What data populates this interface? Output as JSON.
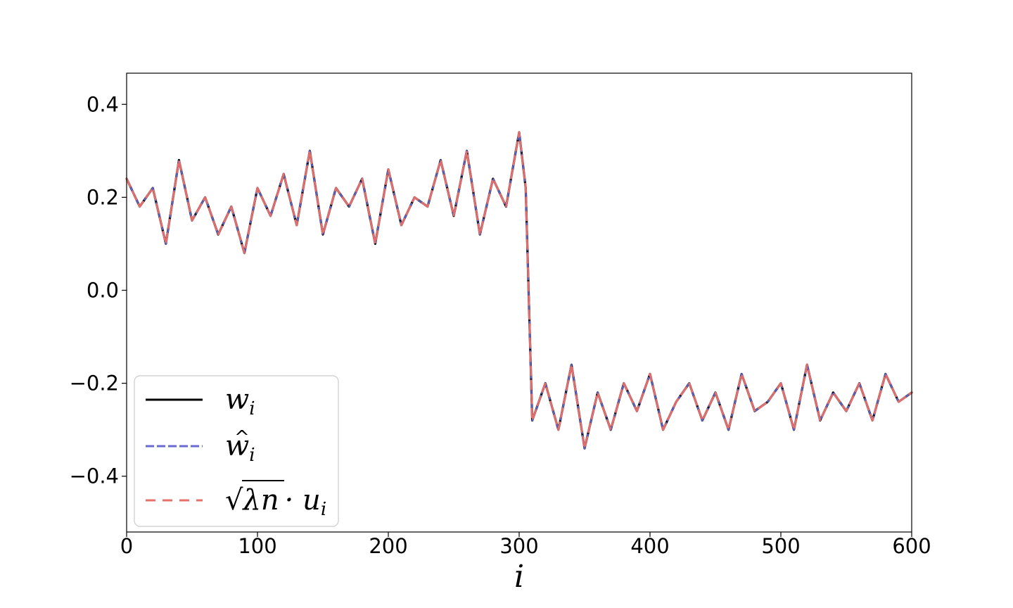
{
  "chart_data": {
    "type": "line",
    "xlabel": "i",
    "ylabel": "",
    "xlim": [
      0,
      600
    ],
    "ylim": [
      -0.52,
      0.467
    ],
    "x_ticks": [
      0,
      100,
      200,
      300,
      400,
      500,
      600
    ],
    "x_tick_labels": [
      "0",
      "100",
      "200",
      "300",
      "400",
      "500",
      "600"
    ],
    "y_ticks": [
      0.4,
      0.2,
      0.0,
      -0.2,
      -0.4
    ],
    "y_tick_labels": [
      "0.4",
      "0.2",
      "0.0",
      "−0.2",
      "−0.4"
    ],
    "grid": false,
    "legend_position": "lower-left",
    "x": [
      0,
      10,
      20,
      30,
      40,
      50,
      60,
      70,
      80,
      90,
      100,
      110,
      120,
      130,
      140,
      150,
      160,
      170,
      180,
      190,
      200,
      210,
      220,
      230,
      240,
      250,
      260,
      270,
      280,
      290,
      300,
      305,
      310,
      320,
      330,
      340,
      350,
      360,
      370,
      380,
      390,
      400,
      410,
      420,
      430,
      440,
      450,
      460,
      470,
      480,
      490,
      500,
      510,
      520,
      530,
      540,
      550,
      560,
      570,
      580,
      590,
      600
    ],
    "series": [
      {
        "name": "w_i",
        "color": "#000000",
        "style": "solid",
        "values": [
          0.24,
          0.18,
          0.22,
          0.1,
          0.28,
          0.15,
          0.2,
          0.12,
          0.18,
          0.08,
          0.22,
          0.16,
          0.25,
          0.14,
          0.3,
          0.12,
          0.22,
          0.18,
          0.24,
          0.1,
          0.26,
          0.14,
          0.2,
          0.18,
          0.28,
          0.16,
          0.3,
          0.12,
          0.24,
          0.18,
          0.34,
          0.22,
          -0.28,
          -0.2,
          -0.3,
          -0.16,
          -0.34,
          -0.22,
          -0.3,
          -0.2,
          -0.26,
          -0.18,
          -0.3,
          -0.24,
          -0.2,
          -0.28,
          -0.22,
          -0.3,
          -0.18,
          -0.26,
          -0.24,
          -0.2,
          -0.3,
          -0.16,
          -0.28,
          -0.22,
          -0.26,
          -0.2,
          -0.28,
          -0.18,
          -0.24,
          -0.22
        ]
      },
      {
        "name": "ŵ_i",
        "color": "#6a6ad2",
        "style": "dashed",
        "values": [
          0.24,
          0.18,
          0.22,
          0.1,
          0.28,
          0.15,
          0.2,
          0.12,
          0.18,
          0.08,
          0.22,
          0.16,
          0.25,
          0.14,
          0.3,
          0.12,
          0.22,
          0.18,
          0.24,
          0.1,
          0.26,
          0.14,
          0.2,
          0.18,
          0.28,
          0.16,
          0.3,
          0.12,
          0.24,
          0.18,
          0.34,
          0.22,
          -0.28,
          -0.2,
          -0.3,
          -0.16,
          -0.34,
          -0.22,
          -0.3,
          -0.2,
          -0.26,
          -0.18,
          -0.3,
          -0.24,
          -0.2,
          -0.28,
          -0.22,
          -0.3,
          -0.18,
          -0.26,
          -0.24,
          -0.2,
          -0.3,
          -0.16,
          -0.28,
          -0.22,
          -0.26,
          -0.2,
          -0.28,
          -0.18,
          -0.24,
          -0.22
        ]
      },
      {
        "name": "√λn · u_i",
        "color": "#e8706c",
        "style": "dashed",
        "values": [
          0.24,
          0.18,
          0.22,
          0.1,
          0.28,
          0.15,
          0.2,
          0.12,
          0.18,
          0.08,
          0.22,
          0.16,
          0.25,
          0.14,
          0.3,
          0.12,
          0.22,
          0.18,
          0.24,
          0.1,
          0.26,
          0.14,
          0.2,
          0.18,
          0.28,
          0.16,
          0.3,
          0.12,
          0.24,
          0.18,
          0.34,
          0.22,
          -0.28,
          -0.2,
          -0.3,
          -0.16,
          -0.34,
          -0.22,
          -0.3,
          -0.2,
          -0.26,
          -0.18,
          -0.3,
          -0.24,
          -0.2,
          -0.28,
          -0.22,
          -0.3,
          -0.18,
          -0.26,
          -0.24,
          -0.2,
          -0.3,
          -0.16,
          -0.28,
          -0.22,
          -0.26,
          -0.2,
          -0.28,
          -0.18,
          -0.24,
          -0.22
        ]
      }
    ],
    "legend": [
      {
        "symbol": "w",
        "subscript": "i",
        "hat": false
      },
      {
        "symbol": "w",
        "subscript": "i",
        "hat": true
      },
      {
        "symbol": "√",
        "radicand": "λn",
        "suffix": "· u",
        "subscript": "i"
      }
    ]
  }
}
